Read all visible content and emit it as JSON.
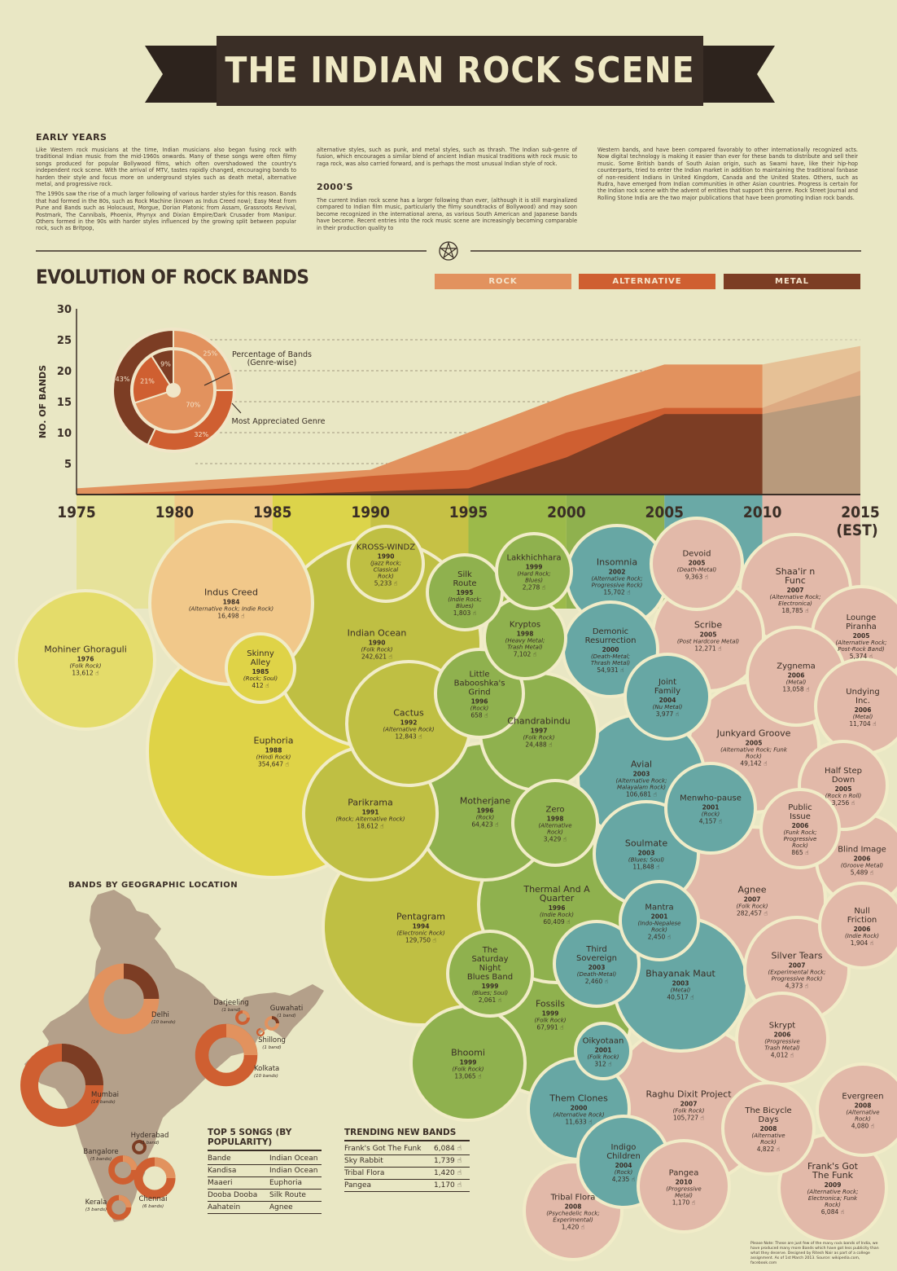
{
  "header": {
    "title": "THE INDIAN ROCK SCENE"
  },
  "intro": {
    "early_heading": "EARLY YEARS",
    "early_p1": "Like Western rock musicians at the time, Indian musicians also began fusing rock with traditional Indian music from the mid-1960s onwards. Many of these songs were often filmy songs produced for popular Bollywood films, which often overshadowed the country's independent rock scene. With the arrival of MTV, tastes rapidly changed, encouraging bands to harden their style and focus more on underground styles such as death metal, alternative metal, and progressive rock.",
    "early_p2": "The 1990s saw the rise of a much larger following of various harder styles for this reason. Bands that had formed in the 80s, such as Rock Machine (known as Indus Creed now); Easy Meat from Pune and Bands such as Holocaust, Morgue, Dorian Platonic from Assam, Grassroots Revival, Postmark, The Cannibals, Phoenix, Phynyx and Dixian Empire/Dark Crusader from Manipur. Others formed in the 90s with harder styles influenced by the growing split between popular rock, such as Britpop,",
    "col2_p1": "alternative styles, such as punk, and metal styles, such as thrash. The Indian sub-genre of fusion, which encourages a similar blend of ancient Indian musical traditions with rock music to raga rock, was also carried forward, and is perhaps the most unusual Indian style of rock.",
    "heading_2000s": "2000'S",
    "col2_p2": "The current Indian rock scene has a larger following than ever, (although it is still marginalized compared to Indian film music, particularly the filmy soundtracks of Bollywood) and may soon become recognized in the international arena, as various South American and Japanese bands have become. Recent entries into the rock music scene are increasingly becoming comparable in their production quality to",
    "col3_p1": "Western bands, and have been compared favorably to other internationally recognized acts. Now digital technology is making it easier than ever for these bands to distribute and sell their music. Some British bands of South Asian origin, such as Swami have, like their hip-hop counterparts, tried to enter the Indian market in addition to maintaining the traditional fanbase of non-resident Indians in United Kingdom, Canada and the United States. Others, such as Rudra, have emerged from Indian communities in other Asian countries. Progress is certain for the Indian rock scene with the advent of entities that support this genre. Rock Street Journal and Rolling Stone India are the two major publications that have been promoting Indian rock bands."
  },
  "evolution": {
    "title": "EVOLUTION OF ROCK BANDS",
    "legend": [
      "ROCK",
      "ALTERNATIVE",
      "METAL"
    ],
    "colors": {
      "rock": "#e2925e",
      "alternative": "#cf5f31",
      "metal": "#7c3d24"
    }
  },
  "chart_data": [
    {
      "type": "area",
      "ylabel": "NO. OF BANDS",
      "ylim": [
        0,
        30
      ],
      "yticks": [
        5,
        10,
        15,
        20,
        25,
        30
      ],
      "x": [
        "1975",
        "1980",
        "1985",
        "1990",
        "1995",
        "2000",
        "2005",
        "2010",
        "2015"
      ],
      "x_note": "(EST)",
      "grid": "horizontal dashed",
      "series": [
        {
          "name": "ROCK",
          "values": [
            1,
            2,
            3,
            4,
            10,
            16,
            21,
            21,
            24
          ]
        },
        {
          "name": "ALTERNATIVE",
          "values": [
            0,
            0.5,
            1.5,
            3,
            4,
            10,
            14,
            14,
            20
          ]
        },
        {
          "name": "METAL",
          "values": [
            0,
            0,
            0,
            0.5,
            1,
            6,
            13,
            13,
            16
          ]
        }
      ]
    },
    {
      "type": "pie",
      "labels": [
        "Percentage of Bands (Genre-wise)",
        "Most Appreciated Genre"
      ],
      "outer_ring": [
        {
          "value": 25,
          "label": "25%"
        },
        {
          "value": 32,
          "label": "32%"
        },
        {
          "value": 43,
          "label": "43%"
        }
      ],
      "inner_ring": [
        {
          "value": 70,
          "label": "70%"
        },
        {
          "value": 21,
          "label": "21%"
        },
        {
          "value": 9,
          "label": "9%"
        }
      ]
    }
  ],
  "bubbles": [
    {
      "name": "Mohiner Ghoraguli",
      "year": "1976",
      "genre": "(Folk Rock)",
      "likes": "13,612"
    },
    {
      "name": "Indus Creed",
      "year": "1984",
      "genre": "(Alternative Rock; Indie Rock)",
      "likes": "16,498"
    },
    {
      "name": "Skinny Alley",
      "year": "1985",
      "genre": "(Rock; Soul)",
      "likes": "412"
    },
    {
      "name": "Euphoria",
      "year": "1988",
      "genre": "(Hindi Rock)",
      "likes": "354,647"
    },
    {
      "name": "KROSS-WINDZ",
      "year": "1990",
      "genre": "(Jazz Rock; Classical Rock)",
      "likes": "5,233"
    },
    {
      "name": "Indian Ocean",
      "year": "1990",
      "genre": "(Folk Rock)",
      "likes": "242,621"
    },
    {
      "name": "Parikrama",
      "year": "1991",
      "genre": "(Rock; Alternative Rock)",
      "likes": "18,612"
    },
    {
      "name": "Cactus",
      "year": "1992",
      "genre": "(Alternative Rock)",
      "likes": "12,843"
    },
    {
      "name": "Pentagram",
      "year": "1994",
      "genre": "(Electronic Rock)",
      "likes": "129,750"
    },
    {
      "name": "Silk Route",
      "year": "1995",
      "genre": "(Indie Rock; Blues)",
      "likes": "1,803"
    },
    {
      "name": "Little Babooshka's Grind",
      "year": "1996",
      "genre": "(Rock)",
      "likes": "658"
    },
    {
      "name": "Motherjane",
      "year": "1996",
      "genre": "(Rock)",
      "likes": "64,423"
    },
    {
      "name": "Thermal And A Quarter",
      "year": "1996",
      "genre": "(Indie Rock)",
      "likes": "60,409"
    },
    {
      "name": "Chandrabindu",
      "year": "1997",
      "genre": "(Folk Rock)",
      "likes": "24,488"
    },
    {
      "name": "Kryptos",
      "year": "1998",
      "genre": "(Heavy Metal; Trash Metal)",
      "likes": "7,102"
    },
    {
      "name": "Zero",
      "year": "1998",
      "genre": "(Alternative Rock)",
      "likes": "3,429"
    },
    {
      "name": "Lakkhichhara",
      "year": "1999",
      "genre": "(Hard Rock; Blues)",
      "likes": "2,278"
    },
    {
      "name": "The Saturday Night Blues Band",
      "year": "1999",
      "genre": "(Blues; Soul)",
      "likes": "2,061"
    },
    {
      "name": "Fossils",
      "year": "1999",
      "genre": "(Folk Rock)",
      "likes": "67,991"
    },
    {
      "name": "Bhoomi",
      "year": "1999",
      "genre": "(Folk Rock)",
      "likes": "13,065"
    },
    {
      "name": "Insomnia",
      "year": "2002",
      "genre": "(Alternative Rock; Progressive Rock)",
      "likes": "15,702"
    },
    {
      "name": "Demonic Resurrection",
      "year": "2000",
      "genre": "(Death-Metal; Thrash Metal)",
      "likes": "54,931"
    },
    {
      "name": "Joint Family",
      "year": "2004",
      "genre": "(Nu Metal)",
      "likes": "3,977"
    },
    {
      "name": "Avial",
      "year": "2003",
      "genre": "(Alternative Rock; Malayalam Rock)",
      "likes": "106,681"
    },
    {
      "name": "Menwho-pause",
      "year": "2001",
      "genre": "(Rock)",
      "likes": "4,157"
    },
    {
      "name": "Soulmate",
      "year": "2003",
      "genre": "(Blues; Soul)",
      "likes": "11,848"
    },
    {
      "name": "Mantra",
      "year": "2001",
      "genre": "(Indo-Nepalese Rock)",
      "likes": "2,450"
    },
    {
      "name": "Third Sovereign",
      "year": "2003",
      "genre": "(Death-Metal)",
      "likes": "2,460"
    },
    {
      "name": "Bhayanak Maut",
      "year": "2003",
      "genre": "(Metal)",
      "likes": "40,517"
    },
    {
      "name": "Oikyotaan",
      "year": "2001",
      "genre": "(Folk Rock)",
      "likes": "312"
    },
    {
      "name": "Them Clones",
      "year": "2000",
      "genre": "(Alternative Rock)",
      "likes": "11,633"
    },
    {
      "name": "Indigo Children",
      "year": "2004",
      "genre": "(Rock)",
      "likes": "4,235"
    },
    {
      "name": "Devoid",
      "year": "2005",
      "genre": "(Death-Metal)",
      "likes": "9,363"
    },
    {
      "name": "Shaa'ir n Func",
      "year": "2007",
      "genre": "(Alternative Rock; Electronica)",
      "likes": "18,785"
    },
    {
      "name": "Lounge Piranha",
      "year": "2005",
      "genre": "(Alternative Rock; Post-Rock Band)",
      "likes": "5,374"
    },
    {
      "name": "Scribe",
      "year": "2005",
      "genre": "(Post Hardcore Metal)",
      "likes": "12,271"
    },
    {
      "name": "Zygnema",
      "year": "2006",
      "genre": "(Metal)",
      "likes": "13,058"
    },
    {
      "name": "Undying Inc.",
      "year": "2006",
      "genre": "(Metal)",
      "likes": "11,704"
    },
    {
      "name": "Junkyard Groove",
      "year": "2005",
      "genre": "(Alternative Rock; Funk Rock)",
      "likes": "49,142"
    },
    {
      "name": "Half Step Down",
      "year": "2005",
      "genre": "(Rock n Roll)",
      "likes": "3,256"
    },
    {
      "name": "Public Issue",
      "year": "2006",
      "genre": "(Funk Rock; Progressive Rock)",
      "likes": "865"
    },
    {
      "name": "Blind Image",
      "year": "2006",
      "genre": "(Groove Metal)",
      "likes": "5,489"
    },
    {
      "name": "Agnee",
      "year": "2007",
      "genre": "(Folk Rock)",
      "likes": "282,457"
    },
    {
      "name": "Null Friction",
      "year": "2006",
      "genre": "(Indie Rock)",
      "likes": "1,904"
    },
    {
      "name": "Silver Tears",
      "year": "2007",
      "genre": "(Experimental Rock; Progressive Rock)",
      "likes": "4,373"
    },
    {
      "name": "Skrypt",
      "year": "2006",
      "genre": "(Progressive Trash Metal)",
      "likes": "4,012"
    },
    {
      "name": "Raghu Dixit Project",
      "year": "2007",
      "genre": "(Folk Rock)",
      "likes": "105,727"
    },
    {
      "name": "The Bicycle Days",
      "year": "2008",
      "genre": "(Alternative Rock)",
      "likes": "4,822"
    },
    {
      "name": "Evergreen",
      "year": "2008",
      "genre": "(Alternative Rock)",
      "likes": "4,080"
    },
    {
      "name": "Frank's Got The Funk",
      "year": "2009",
      "genre": "(Alternative Rock; Electronica; Funk Rock)",
      "likes": "6,084"
    },
    {
      "name": "Pangea",
      "year": "2010",
      "genre": "(Progressive Metal)",
      "likes": "1,170"
    },
    {
      "name": "Tribal Flora",
      "year": "2008",
      "genre": "(Psychedelic Rock; Experimental)",
      "likes": "1,420"
    }
  ],
  "geo": {
    "title": "BANDS BY GEOGRAPHIC LOCATION",
    "cities": [
      {
        "name": "Delhi",
        "count": "(10 bands)"
      },
      {
        "name": "Darjeeling",
        "count": "(1 band)"
      },
      {
        "name": "Guwahati",
        "count": "(1 band)"
      },
      {
        "name": "Shillong",
        "count": "(1 band)"
      },
      {
        "name": "Kolkata",
        "count": "(10 bands)"
      },
      {
        "name": "Mumbai",
        "count": "(14 bands)"
      },
      {
        "name": "Hyderabad",
        "count": "(1 band)"
      },
      {
        "name": "Bangalore",
        "count": "(5 bands)"
      },
      {
        "name": "Chennai",
        "count": "(6 bands)"
      },
      {
        "name": "Kerala",
        "count": "(3 bands)"
      }
    ]
  },
  "top_songs": {
    "title": "TOP 5 SONGS (BY POPULARITY)",
    "rows": [
      {
        "song": "Bande",
        "band": "Indian Ocean"
      },
      {
        "song": "Kandisa",
        "band": "Indian Ocean"
      },
      {
        "song": "Maaeri",
        "band": "Euphoria"
      },
      {
        "song": "Dooba Dooba",
        "band": "Silk Route"
      },
      {
        "song": "Aahatein",
        "band": "Agnee"
      }
    ]
  },
  "trending": {
    "title": "TRENDING NEW BANDS",
    "rows": [
      {
        "band": "Frank's Got The Funk",
        "likes": "6,084"
      },
      {
        "band": "Sky Rabbit",
        "likes": "1,739"
      },
      {
        "band": "Tribal Flora",
        "likes": "1,420"
      },
      {
        "band": "Pangea",
        "likes": "1,170"
      }
    ]
  },
  "footnote": "Please Note: These are just few of the many rock bands of India, we have produced many more Bands which have got less publicity than what they deserve. Designed by Ritesh Nair as part of a college assignment. As of 1st March 2013. Source: wikipedia.com, facebook.com"
}
